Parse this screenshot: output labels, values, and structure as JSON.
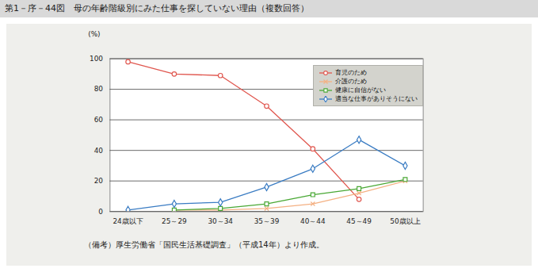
{
  "chart_data": {
    "type": "line",
    "title": "第1－序－44図　母の年齢階級別にみた仕事を探していない理由（複数回答）",
    "y_label": "(%)",
    "note": "（備考）厚生労働省「国民生活基礎調査」（平成14年）より作成。",
    "categories": [
      "24歳以下",
      "25～29",
      "30～34",
      "35～39",
      "40～44",
      "45～49",
      "50歳以上"
    ],
    "series": [
      {
        "name": "育児のため",
        "color": "#e0574f",
        "marker": "circle",
        "values": [
          98,
          90,
          89,
          69,
          41,
          8,
          null
        ]
      },
      {
        "name": "介護のため",
        "color": "#f4b183",
        "marker": "times",
        "values": [
          null,
          1,
          1,
          2,
          5,
          12,
          20
        ]
      },
      {
        "name": "健康に自信がない",
        "color": "#49a834",
        "marker": "square",
        "values": [
          null,
          1,
          2,
          5,
          11,
          15,
          21
        ]
      },
      {
        "name": "適当な仕事がありそうにない",
        "color": "#3a7cc3",
        "marker": "diamond",
        "values": [
          1,
          5,
          6,
          16,
          28,
          47,
          30
        ]
      }
    ],
    "ylim": [
      0,
      100
    ],
    "yticks": [
      0,
      20,
      40,
      60,
      80,
      100
    ],
    "grid": true,
    "legend": "top-right"
  }
}
